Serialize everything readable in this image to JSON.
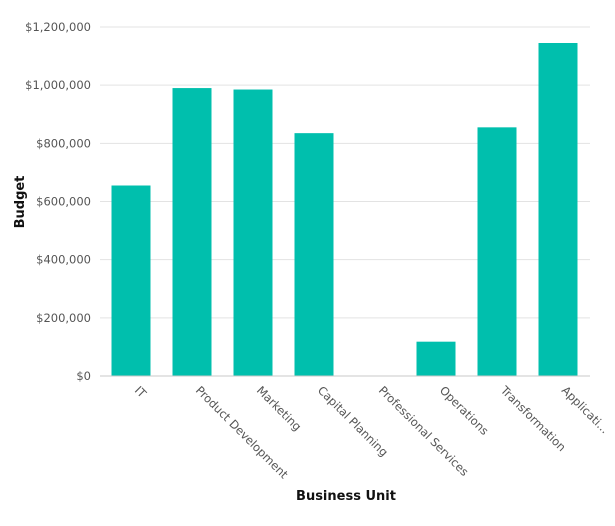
{
  "chart_data": {
    "type": "bar",
    "title": "",
    "xlabel": "Business Unit",
    "ylabel": "Budget",
    "ylim": [
      0,
      1200000
    ],
    "yticks": [
      0,
      200000,
      400000,
      600000,
      800000,
      1000000,
      1200000
    ],
    "ytick_labels": [
      "$0",
      "$200,000",
      "$400,000",
      "$600,000",
      "$800,000",
      "$1,000,000",
      "$1,200,000"
    ],
    "categories": [
      "IT",
      "Product Development",
      "Marketing",
      "Capital Planning",
      "Professional Services",
      "Operations",
      "Transformation",
      "Applicati..."
    ],
    "values": [
      655000,
      990000,
      985000,
      835000,
      0,
      118000,
      855000,
      1145000
    ],
    "bar_color": "#00bfad",
    "grid": true,
    "legend": "none"
  }
}
